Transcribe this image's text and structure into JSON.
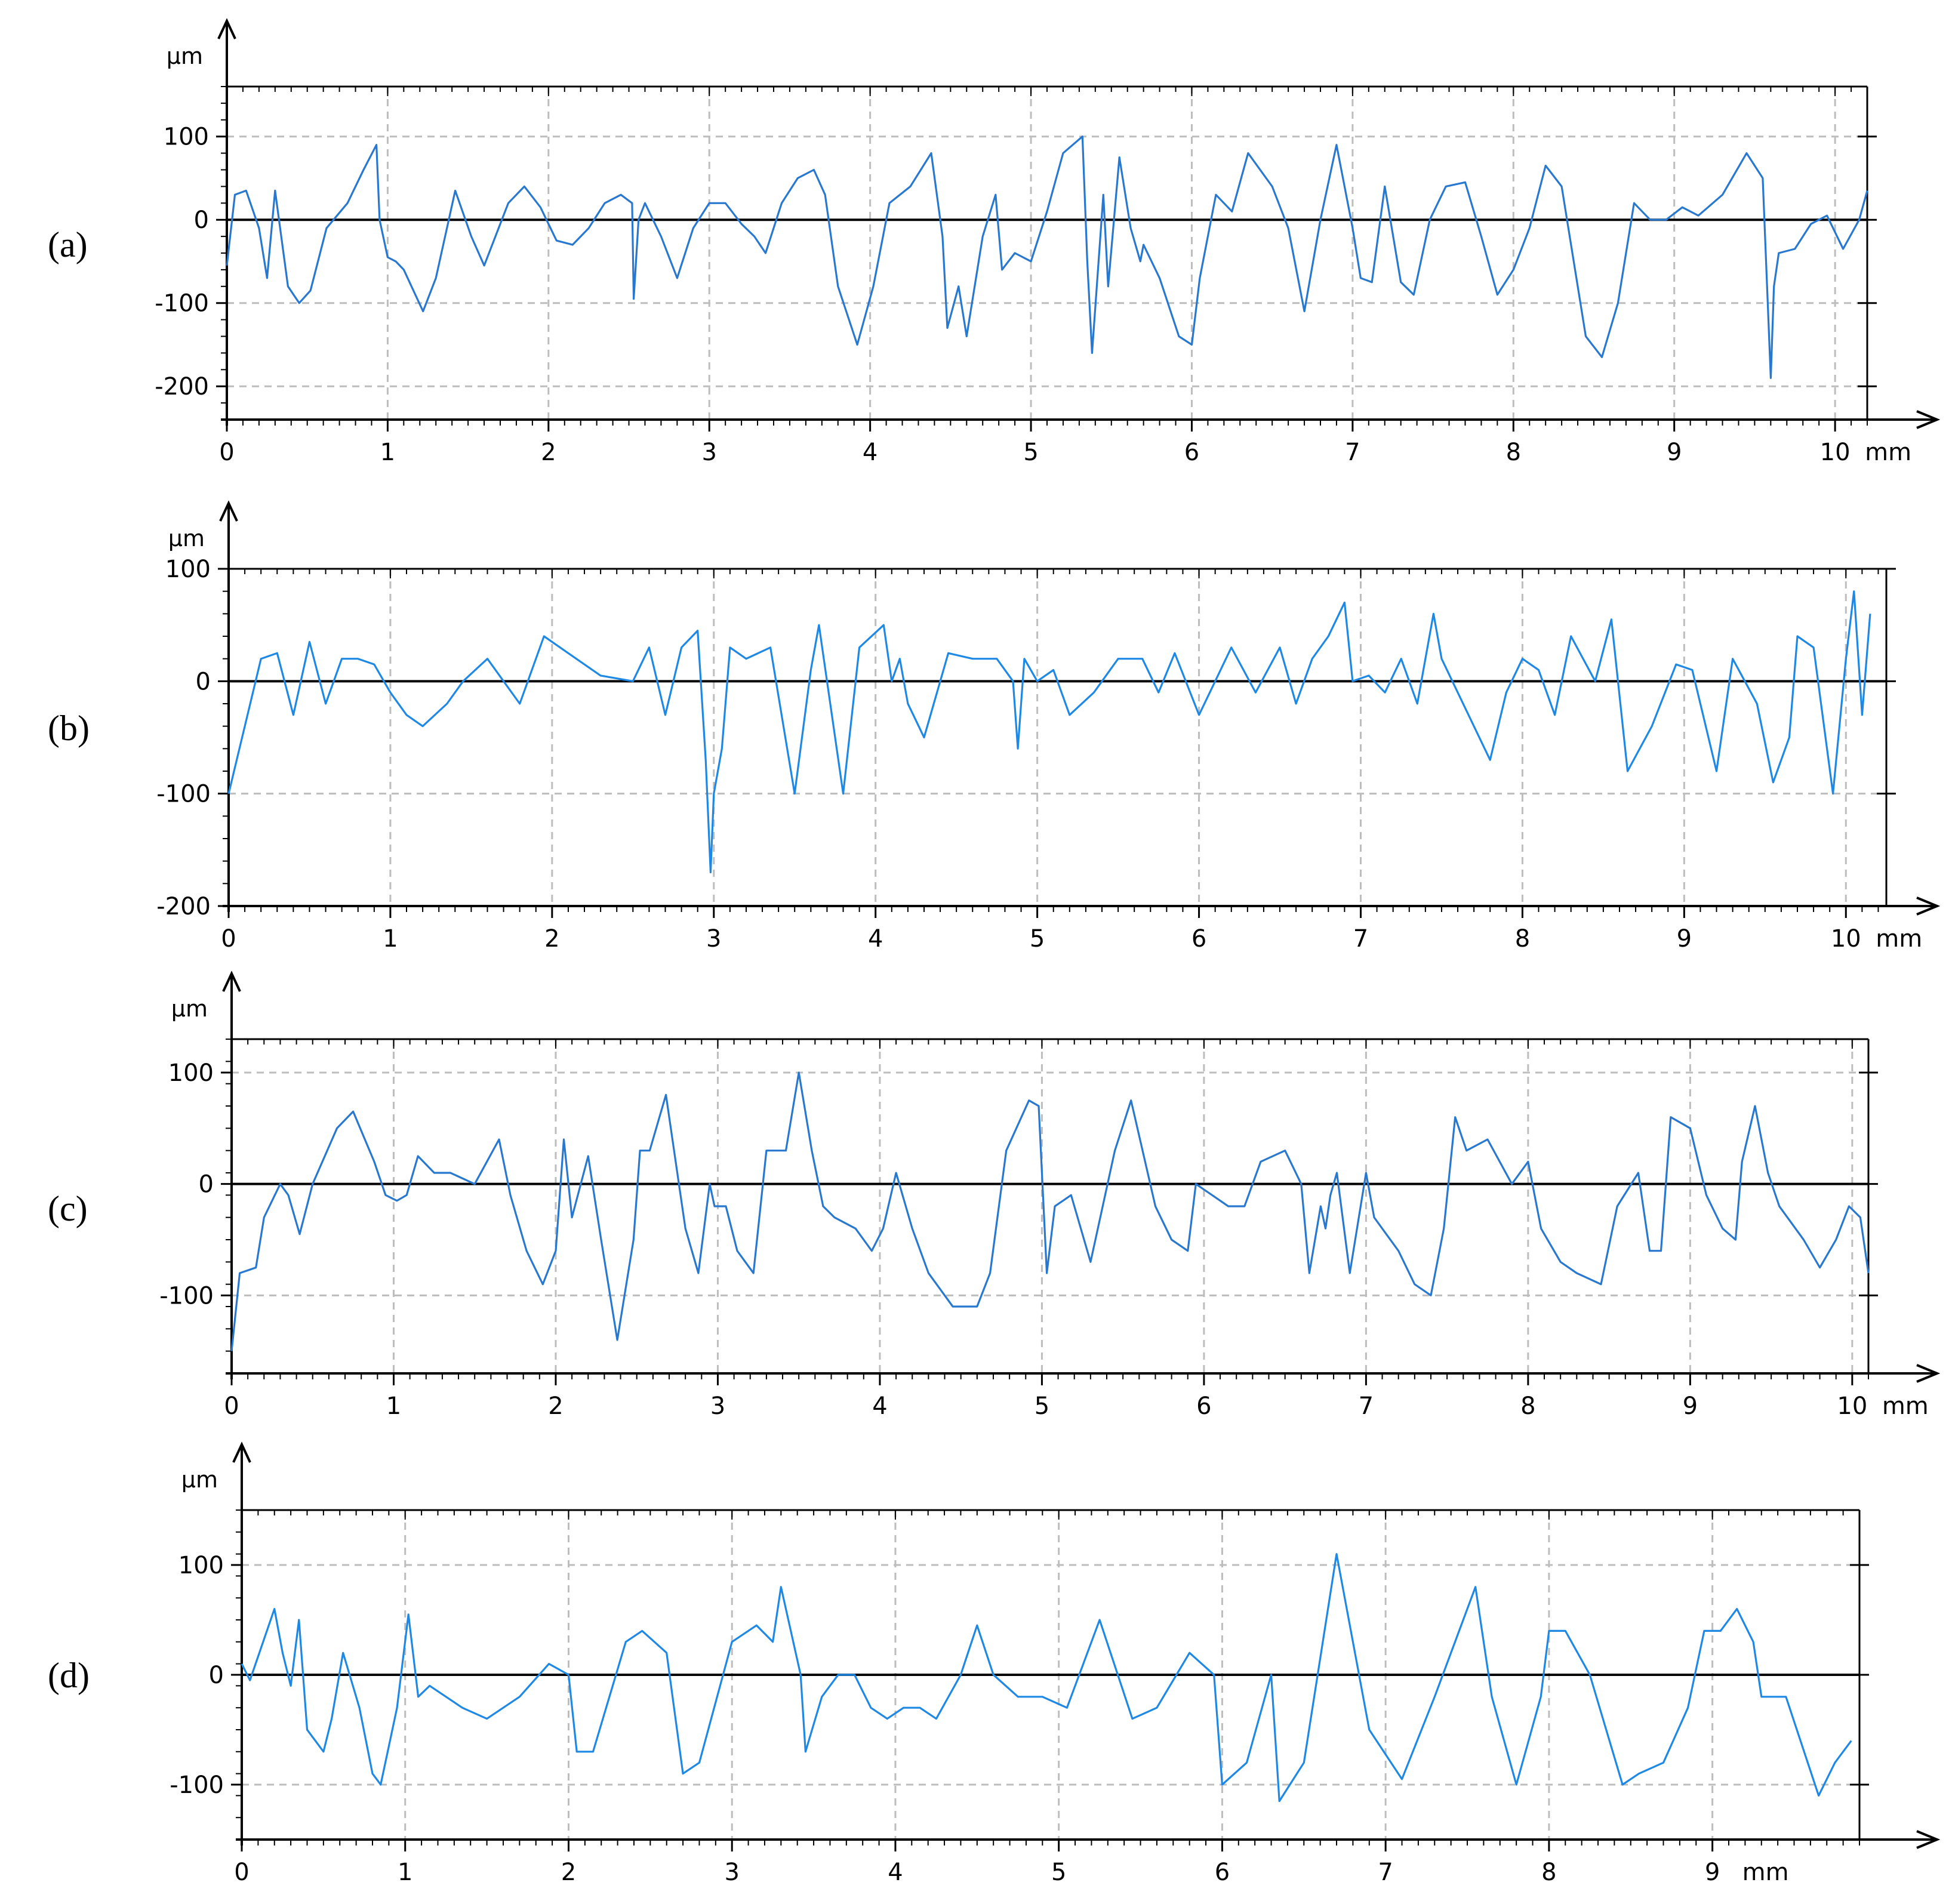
{
  "chart_data": [
    {
      "type": "line",
      "panel_label": "(a)",
      "xlabel": "mm",
      "ylabel": "µm",
      "xlim": [
        0,
        10.2
      ],
      "ylim": [
        -240,
        160
      ],
      "xticks": [
        0,
        1,
        2,
        3,
        4,
        5,
        6,
        7,
        8,
        9,
        10
      ],
      "yticks": [
        100,
        0,
        -100,
        -200
      ],
      "grid": true,
      "line_color": "#2878d0",
      "series": [
        {
          "x": [
            0,
            0.05,
            0.12,
            0.2,
            0.25,
            0.3,
            0.38,
            0.45,
            0.52,
            0.62,
            0.75,
            0.85,
            0.93,
            0.95,
            1.0,
            1.05,
            1.1,
            1.22,
            1.3,
            1.42,
            1.52,
            1.6,
            1.75,
            1.85,
            1.95,
            2.05,
            2.15,
            2.25,
            2.35,
            2.45,
            2.52,
            2.53,
            2.56,
            2.6,
            2.7,
            2.8,
            2.9,
            3.0,
            3.1,
            3.2,
            3.28,
            3.35,
            3.45,
            3.55,
            3.65,
            3.72,
            3.8,
            3.92,
            4.02,
            4.12,
            4.25,
            4.38,
            4.45,
            4.48,
            4.55,
            4.6,
            4.7,
            4.78,
            4.82,
            4.9,
            5.0,
            5.1,
            5.2,
            5.32,
            5.35,
            5.38,
            5.45,
            5.48,
            5.55,
            5.62,
            5.68,
            5.7,
            5.8,
            5.92,
            6.0,
            6.05,
            6.15,
            6.25,
            6.35,
            6.5,
            6.6,
            6.7,
            6.8,
            6.9,
            7.0,
            7.05,
            7.12,
            7.2,
            7.3,
            7.38,
            7.48,
            7.58,
            7.7,
            7.8,
            7.9,
            8.0,
            8.1,
            8.2,
            8.3,
            8.45,
            8.55,
            8.65,
            8.75,
            8.85,
            8.95,
            9.05,
            9.15,
            9.3,
            9.45,
            9.55,
            9.6,
            9.62,
            9.65,
            9.75,
            9.85,
            9.95,
            10.05,
            10.15,
            10.2
          ],
          "y": [
            -55,
            30,
            35,
            -10,
            -70,
            35,
            -80,
            -100,
            -85,
            -10,
            20,
            60,
            90,
            0,
            -45,
            -50,
            -60,
            -110,
            -70,
            35,
            -20,
            -55,
            20,
            40,
            15,
            -25,
            -30,
            -10,
            20,
            30,
            20,
            -95,
            0,
            20,
            -20,
            -70,
            -10,
            20,
            20,
            -5,
            -20,
            -40,
            20,
            50,
            60,
            30,
            -80,
            -150,
            -80,
            20,
            40,
            80,
            -20,
            -130,
            -80,
            -140,
            -20,
            30,
            -60,
            -40,
            -50,
            10,
            80,
            100,
            -50,
            -160,
            30,
            -80,
            75,
            -10,
            -50,
            -30,
            -70,
            -140,
            -150,
            -70,
            30,
            10,
            80,
            40,
            -10,
            -110,
            0,
            90,
            -10,
            -70,
            -75,
            40,
            -75,
            -90,
            0,
            40,
            45,
            -20,
            -90,
            -60,
            -10,
            65,
            40,
            -140,
            -165,
            -100,
            20,
            0,
            0,
            15,
            5,
            30,
            80,
            50,
            -190,
            -80,
            -40,
            -35,
            -5,
            5,
            -35,
            0,
            35
          ]
        }
      ]
    },
    {
      "type": "line",
      "panel_label": "(b)",
      "xlabel": "mm",
      "ylabel": "µm",
      "xlim": [
        0,
        10.25
      ],
      "ylim": [
        -200,
        100
      ],
      "xticks": [
        0,
        1,
        2,
        3,
        4,
        5,
        6,
        7,
        8,
        9,
        10
      ],
      "yticks": [
        100,
        0,
        -100,
        -200
      ],
      "grid": true,
      "line_color": "#1e88e5",
      "series": [
        {
          "x": [
            0,
            0.1,
            0.2,
            0.3,
            0.4,
            0.5,
            0.6,
            0.7,
            0.8,
            0.9,
            1.0,
            1.1,
            1.2,
            1.35,
            1.45,
            1.6,
            1.8,
            1.95,
            2.1,
            2.3,
            2.5,
            2.6,
            2.7,
            2.8,
            2.9,
            2.95,
            2.98,
            3.0,
            3.05,
            3.1,
            3.2,
            3.35,
            3.5,
            3.6,
            3.65,
            3.8,
            3.9,
            4.05,
            4.1,
            4.15,
            4.2,
            4.3,
            4.45,
            4.6,
            4.75,
            4.85,
            4.88,
            4.92,
            5.0,
            5.1,
            5.2,
            5.35,
            5.5,
            5.65,
            5.75,
            5.85,
            6.0,
            6.1,
            6.2,
            6.35,
            6.5,
            6.6,
            6.7,
            6.8,
            6.9,
            6.95,
            7.05,
            7.15,
            7.25,
            7.35,
            7.45,
            7.5,
            7.6,
            7.7,
            7.8,
            7.9,
            8.0,
            8.1,
            8.2,
            8.3,
            8.45,
            8.55,
            8.65,
            8.8,
            8.95,
            9.05,
            9.2,
            9.3,
            9.45,
            9.55,
            9.65,
            9.7,
            9.8,
            9.92,
            10.0,
            10.05,
            10.1,
            10.15
          ],
          "y": [
            -100,
            -40,
            20,
            25,
            -30,
            35,
            -20,
            20,
            20,
            15,
            -10,
            -30,
            -40,
            -20,
            0,
            20,
            -20,
            40,
            25,
            5,
            0,
            30,
            -30,
            30,
            45,
            -70,
            -170,
            -100,
            -60,
            30,
            20,
            30,
            -100,
            10,
            50,
            -100,
            30,
            50,
            0,
            20,
            -20,
            -50,
            25,
            20,
            20,
            0,
            -60,
            20,
            0,
            10,
            -30,
            -10,
            20,
            20,
            -10,
            25,
            -30,
            0,
            30,
            -10,
            30,
            -20,
            20,
            40,
            70,
            0,
            5,
            -10,
            20,
            -20,
            60,
            20,
            -10,
            -40,
            -70,
            -10,
            20,
            10,
            -30,
            40,
            0,
            55,
            -80,
            -40,
            15,
            10,
            -80,
            20,
            -20,
            -90,
            -50,
            40,
            30,
            -100,
            20,
            80,
            -30,
            60
          ]
        }
      ]
    },
    {
      "type": "line",
      "panel_label": "(c)",
      "xlabel": "mm",
      "ylabel": "µm",
      "xlim": [
        0,
        10.1
      ],
      "ylim": [
        -170,
        130
      ],
      "xticks": [
        0,
        1,
        2,
        3,
        4,
        5,
        6,
        7,
        8,
        9,
        10
      ],
      "yticks": [
        100,
        0,
        -100
      ],
      "grid": true,
      "line_color": "#2878d0",
      "series": [
        {
          "x": [
            0,
            0.05,
            0.15,
            0.2,
            0.3,
            0.35,
            0.42,
            0.5,
            0.65,
            0.75,
            0.88,
            0.95,
            1.02,
            1.08,
            1.15,
            1.25,
            1.35,
            1.5,
            1.65,
            1.72,
            1.82,
            1.92,
            2.0,
            2.05,
            2.1,
            2.2,
            2.28,
            2.38,
            2.48,
            2.52,
            2.58,
            2.68,
            2.8,
            2.88,
            2.95,
            2.98,
            3.05,
            3.12,
            3.22,
            3.3,
            3.42,
            3.5,
            3.58,
            3.65,
            3.72,
            3.85,
            3.95,
            4.02,
            4.1,
            4.2,
            4.3,
            4.45,
            4.6,
            4.68,
            4.78,
            4.92,
            4.98,
            5.03,
            5.08,
            5.18,
            5.3,
            5.45,
            5.55,
            5.7,
            5.8,
            5.9,
            5.95,
            6.05,
            6.15,
            6.25,
            6.35,
            6.5,
            6.6,
            6.65,
            6.72,
            6.75,
            6.78,
            6.82,
            6.9,
            7.0,
            7.05,
            7.1,
            7.2,
            7.3,
            7.4,
            7.48,
            7.55,
            7.62,
            7.75,
            7.9,
            8.0,
            8.08,
            8.2,
            8.3,
            8.45,
            8.55,
            8.68,
            8.75,
            8.82,
            8.88,
            9.0,
            9.1,
            9.2,
            9.28,
            9.32,
            9.4,
            9.48,
            9.55,
            9.7,
            9.8,
            9.9,
            9.98,
            10.05,
            10.1
          ],
          "y": [
            -150,
            -80,
            -75,
            -30,
            0,
            -10,
            -45,
            0,
            50,
            65,
            20,
            -10,
            -15,
            -10,
            25,
            10,
            10,
            0,
            40,
            -10,
            -60,
            -90,
            -60,
            40,
            -30,
            25,
            -50,
            -140,
            -50,
            30,
            30,
            80,
            -40,
            -80,
            0,
            -20,
            -20,
            -60,
            -80,
            30,
            30,
            100,
            30,
            -20,
            -30,
            -40,
            -60,
            -40,
            10,
            -40,
            -80,
            -110,
            -110,
            -80,
            30,
            75,
            70,
            -80,
            -20,
            -10,
            -70,
            30,
            75,
            -20,
            -50,
            -60,
            0,
            -10,
            -20,
            -20,
            20,
            30,
            0,
            -80,
            -20,
            -40,
            -10,
            10,
            -80,
            10,
            -30,
            -40,
            -60,
            -90,
            -100,
            -40,
            60,
            30,
            40,
            0,
            20,
            -40,
            -70,
            -80,
            -90,
            -20,
            10,
            -60,
            -60,
            60,
            50,
            -10,
            -40,
            -50,
            20,
            70,
            10,
            -20,
            -50,
            -75,
            -50,
            -20,
            -30,
            -80
          ]
        }
      ]
    },
    {
      "type": "line",
      "panel_label": "(d)",
      "xlabel": "mm",
      "ylabel": "µm",
      "xlim": [
        0,
        9.9
      ],
      "ylim": [
        -150,
        150
      ],
      "xticks": [
        0,
        1,
        2,
        3,
        4,
        5,
        6,
        7,
        8,
        9
      ],
      "yticks": [
        100,
        0,
        -100
      ],
      "grid": true,
      "line_color": "#1e88e5",
      "series": [
        {
          "x": [
            0,
            0.05,
            0.2,
            0.25,
            0.3,
            0.35,
            0.4,
            0.5,
            0.55,
            0.62,
            0.72,
            0.8,
            0.85,
            0.95,
            1.02,
            1.08,
            1.15,
            1.35,
            1.5,
            1.7,
            1.88,
            2.0,
            2.05,
            2.15,
            2.35,
            2.45,
            2.6,
            2.7,
            2.8,
            3.0,
            3.15,
            3.25,
            3.3,
            3.42,
            3.45,
            3.55,
            3.65,
            3.75,
            3.85,
            3.95,
            4.05,
            4.15,
            4.25,
            4.4,
            4.5,
            4.6,
            4.75,
            4.9,
            5.05,
            5.25,
            5.45,
            5.6,
            5.8,
            5.95,
            6.0,
            6.15,
            6.3,
            6.35,
            6.5,
            6.7,
            6.8,
            6.9,
            7.1,
            7.3,
            7.55,
            7.65,
            7.8,
            7.95,
            8.0,
            8.1,
            8.25,
            8.45,
            8.55,
            8.7,
            8.85,
            8.95,
            9.05,
            9.15,
            9.25,
            9.3,
            9.45,
            9.65,
            9.75,
            9.85
          ],
          "y": [
            10,
            -5,
            60,
            20,
            -10,
            50,
            -50,
            -70,
            -40,
            20,
            -30,
            -90,
            -100,
            -30,
            55,
            -20,
            -10,
            -30,
            -40,
            -20,
            10,
            0,
            -70,
            -70,
            30,
            40,
            20,
            -90,
            -80,
            30,
            45,
            30,
            80,
            0,
            -70,
            -20,
            0,
            0,
            -30,
            -40,
            -30,
            -30,
            -40,
            0,
            45,
            0,
            -20,
            -20,
            -30,
            50,
            -40,
            -30,
            20,
            0,
            -100,
            -80,
            0,
            -115,
            -80,
            110,
            30,
            -50,
            -95,
            -20,
            80,
            -20,
            -100,
            -20,
            40,
            40,
            0,
            -100,
            -90,
            -80,
            -30,
            40,
            40,
            60,
            30,
            -20,
            -20,
            -110,
            -80,
            -60
          ]
        }
      ]
    }
  ]
}
